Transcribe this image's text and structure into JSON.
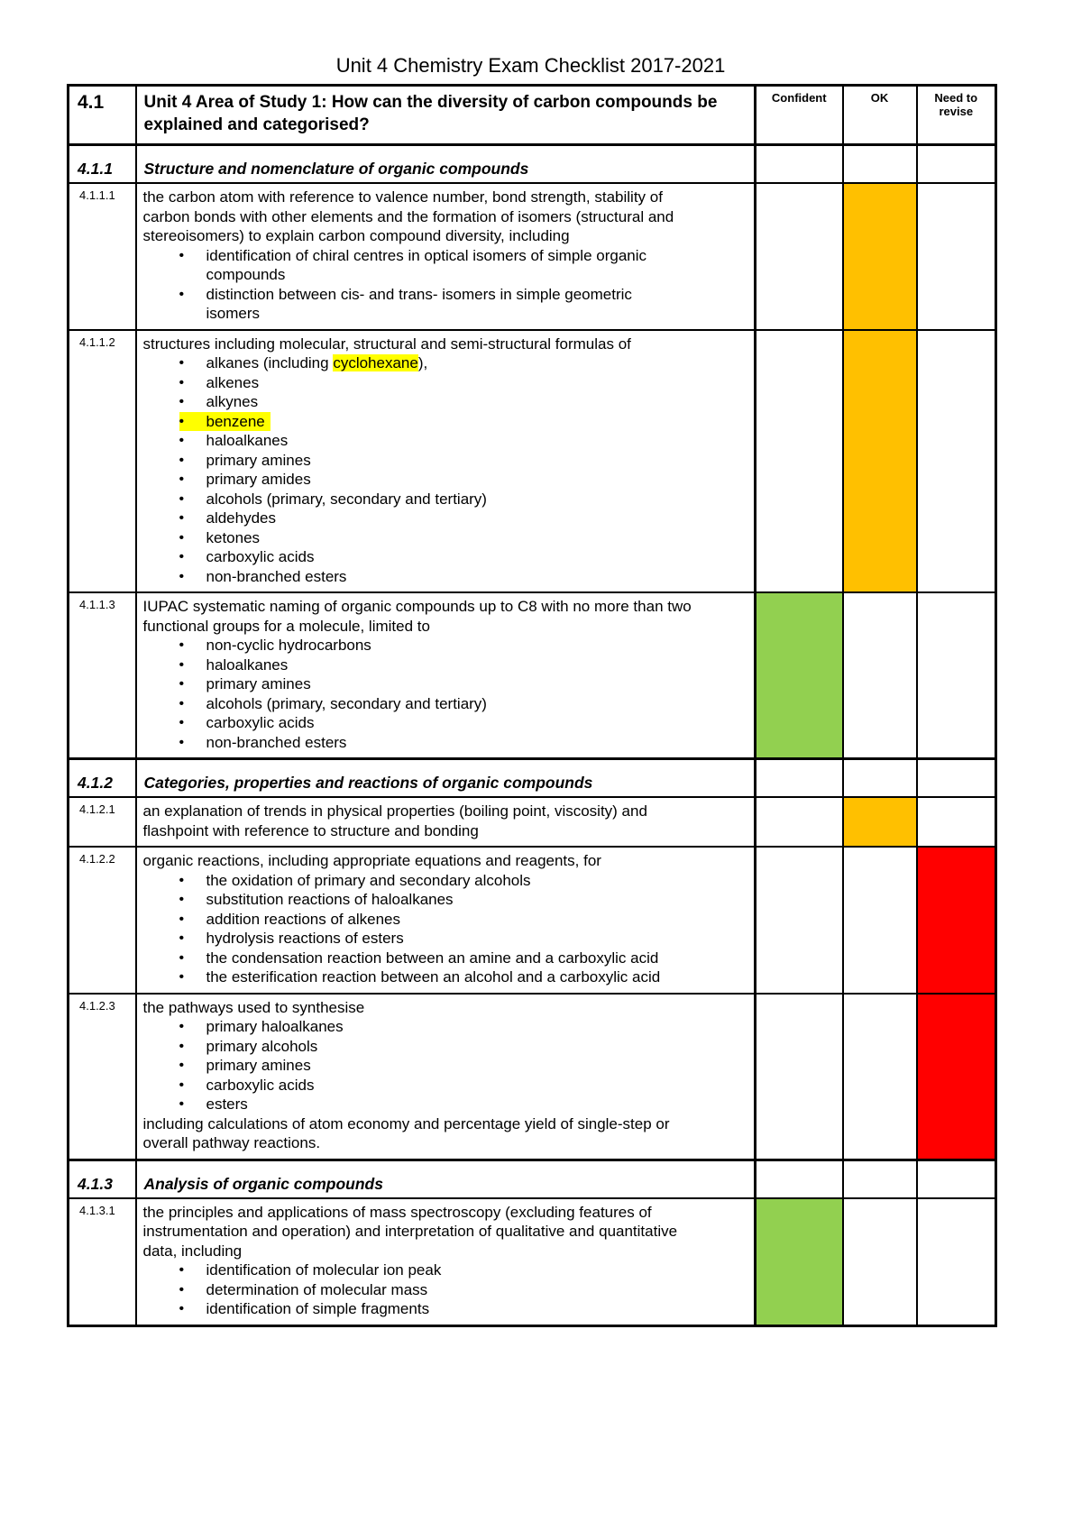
{
  "page": {
    "title": "Unit 4 Chemistry Exam Checklist 2017-2021"
  },
  "table": {
    "header": {
      "number": "4.1",
      "title": "Unit 4 Area of Study 1: How can the diversity of carbon compounds be explained and categorised?",
      "columns": [
        "Confident",
        "OK",
        "Need to revise"
      ]
    },
    "status_colors": {
      "confident": "#92d050",
      "ok": "#ffc000",
      "need_to_revise": "#ff0000"
    },
    "highlight_color": "#ffff00",
    "rows": [
      {
        "type": "section",
        "number": "4.1.1",
        "title": "Structure and nomenclature of organic compounds",
        "marked_column": null
      },
      {
        "type": "item",
        "number": "4.1.1.1",
        "intro": "the carbon atom with reference to valence number, bond strength, stability of carbon bonds with other elements and the formation of isomers (structural and stereoisomers) to explain carbon compound diversity, including",
        "bullets": [
          "identification of chiral centres in optical isomers of simple organic compounds",
          "distinction between cis- and trans- isomers in simple geometric isomers"
        ],
        "marked_column": "ok"
      },
      {
        "type": "item",
        "number": "4.1.1.2",
        "intro": "structures including molecular, structural and semi-structural formulas of",
        "bullets": [
          {
            "segments": [
              {
                "text": "alkanes (including "
              },
              {
                "text": "cyclohexane",
                "highlight": true
              },
              {
                "text": "),"
              }
            ]
          },
          "alkenes",
          "alkynes",
          {
            "text": "benzene",
            "full_highlight": true
          },
          "haloalkanes",
          "primary amines",
          "primary amides",
          "alcohols (primary, secondary and tertiary)",
          "aldehydes",
          "ketones",
          "carboxylic acids",
          "non-branched esters"
        ],
        "marked_column": "ok"
      },
      {
        "type": "item",
        "number": "4.1.1.3",
        "intro": "IUPAC systematic naming of organic compounds up to C8 with no more than two functional groups for a molecule, limited to",
        "bullets": [
          "non-cyclic hydrocarbons",
          "haloalkanes",
          "primary amines",
          "alcohols (primary, secondary and tertiary)",
          "carboxylic acids",
          "non-branched esters"
        ],
        "marked_column": "confident"
      },
      {
        "type": "section",
        "number": "4.1.2",
        "title": "Categories, properties and reactions of organic compounds",
        "marked_column": null
      },
      {
        "type": "item",
        "number": "4.1.2.1",
        "intro": "an explanation of trends in physical properties (boiling point, viscosity) and flashpoint with reference to structure and bonding",
        "bullets": [],
        "marked_column": "ok"
      },
      {
        "type": "item",
        "number": "4.1.2.2",
        "intro": "organic reactions, including appropriate equations and reagents, for",
        "bullets": [
          "the oxidation of primary and secondary alcohols",
          "substitution reactions of haloalkanes",
          "addition reactions of alkenes",
          "hydrolysis reactions of esters",
          "the condensation reaction between an amine and a carboxylic acid",
          "the esterification reaction between an alcohol and a carboxylic acid"
        ],
        "marked_column": "need_to_revise"
      },
      {
        "type": "item",
        "number": "4.1.2.3",
        "intro": "the pathways used to synthesise",
        "bullets": [
          "primary haloalkanes",
          "primary alcohols",
          "primary amines",
          "carboxylic acids",
          "esters"
        ],
        "outro": "including calculations of atom economy and percentage yield of single-step or overall pathway reactions.",
        "marked_column": "need_to_revise"
      },
      {
        "type": "section",
        "number": "4.1.3",
        "title": "Analysis of organic compounds",
        "marked_column": null
      },
      {
        "type": "item",
        "number": "4.1.3.1",
        "intro": "the principles and applications of mass spectroscopy (excluding features of instrumentation and operation) and interpretation of qualitative and quantitative data, including",
        "bullets": [
          "identification of molecular ion peak",
          "determination of molecular mass",
          "identification of simple fragments"
        ],
        "marked_column": "confident"
      }
    ]
  }
}
